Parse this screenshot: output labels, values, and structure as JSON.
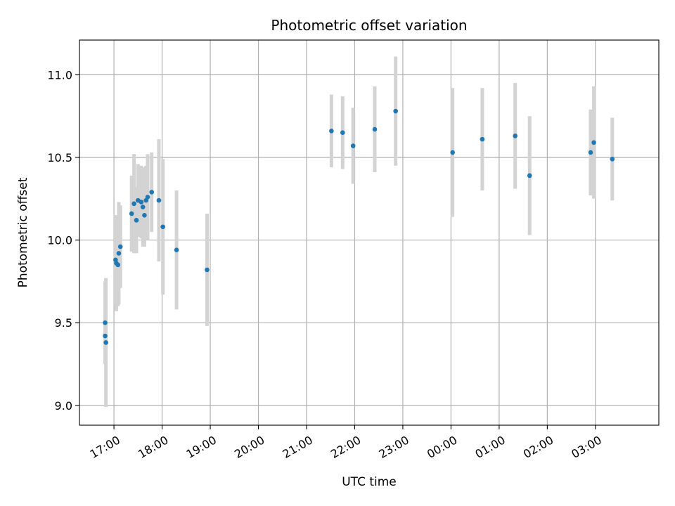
{
  "chart_data": {
    "type": "scatter",
    "title": "Photometric offset variation",
    "xlabel": "UTC time",
    "ylabel": "Photometric offset",
    "x_unit": "UTC time (HH:MM)",
    "xlim": [
      "16:17",
      "04:19"
    ],
    "ylim": [
      8.88,
      11.21
    ],
    "grid": true,
    "colors": {
      "points": "#1f77b4",
      "error_bars": "#d3d3d3",
      "grid": "#b0b0b0"
    },
    "x_ticks": [
      "17:00",
      "18:00",
      "19:00",
      "20:00",
      "21:00",
      "22:00",
      "23:00",
      "00:00",
      "01:00",
      "02:00",
      "03:00"
    ],
    "y_ticks": [
      9.0,
      9.5,
      10.0,
      10.5,
      11.0
    ],
    "points": [
      {
        "x": "16:49",
        "y": 9.5,
        "yerr": 0.25
      },
      {
        "x": "16:49",
        "y": 9.42,
        "yerr": 0.17
      },
      {
        "x": "16:50",
        "y": 9.38,
        "yerr": 0.39
      },
      {
        "x": "17:02",
        "y": 9.88,
        "yerr": 0.27
      },
      {
        "x": "17:03",
        "y": 9.86,
        "yerr": 0.29
      },
      {
        "x": "17:05",
        "y": 9.85,
        "yerr": 0.25
      },
      {
        "x": "17:06",
        "y": 9.92,
        "yerr": 0.31
      },
      {
        "x": "17:08",
        "y": 9.96,
        "yerr": 0.25
      },
      {
        "x": "17:22",
        "y": 10.16,
        "yerr": 0.23
      },
      {
        "x": "17:25",
        "y": 10.22,
        "yerr": 0.3
      },
      {
        "x": "17:28",
        "y": 10.12,
        "yerr": 0.2
      },
      {
        "x": "17:30",
        "y": 10.24,
        "yerr": 0.22
      },
      {
        "x": "17:34",
        "y": 10.23,
        "yerr": 0.22
      },
      {
        "x": "17:36",
        "y": 10.2,
        "yerr": 0.24
      },
      {
        "x": "17:38",
        "y": 10.15,
        "yerr": 0.19
      },
      {
        "x": "17:40",
        "y": 10.24,
        "yerr": 0.21
      },
      {
        "x": "17:42",
        "y": 10.26,
        "yerr": 0.26
      },
      {
        "x": "17:47",
        "y": 10.29,
        "yerr": 0.24
      },
      {
        "x": "17:56",
        "y": 10.24,
        "yerr": 0.37
      },
      {
        "x": "18:01",
        "y": 10.08,
        "yerr": 0.41
      },
      {
        "x": "18:18",
        "y": 9.94,
        "yerr": 0.36
      },
      {
        "x": "18:56",
        "y": 9.82,
        "yerr": 0.34
      },
      {
        "x": "21:31",
        "y": 10.66,
        "yerr": 0.22
      },
      {
        "x": "21:45",
        "y": 10.65,
        "yerr": 0.22
      },
      {
        "x": "21:58",
        "y": 10.57,
        "yerr": 0.23
      },
      {
        "x": "22:25",
        "y": 10.67,
        "yerr": 0.26
      },
      {
        "x": "22:51",
        "y": 10.78,
        "yerr": 0.33
      },
      {
        "x": "00:02",
        "y": 10.53,
        "yerr": 0.39
      },
      {
        "x": "00:39",
        "y": 10.61,
        "yerr": 0.31
      },
      {
        "x": "01:20",
        "y": 10.63,
        "yerr": 0.32
      },
      {
        "x": "01:38",
        "y": 10.39,
        "yerr": 0.36
      },
      {
        "x": "02:54",
        "y": 10.53,
        "yerr": 0.26
      },
      {
        "x": "02:58",
        "y": 10.59,
        "yerr": 0.34
      },
      {
        "x": "03:21",
        "y": 10.49,
        "yerr": 0.25
      }
    ]
  }
}
